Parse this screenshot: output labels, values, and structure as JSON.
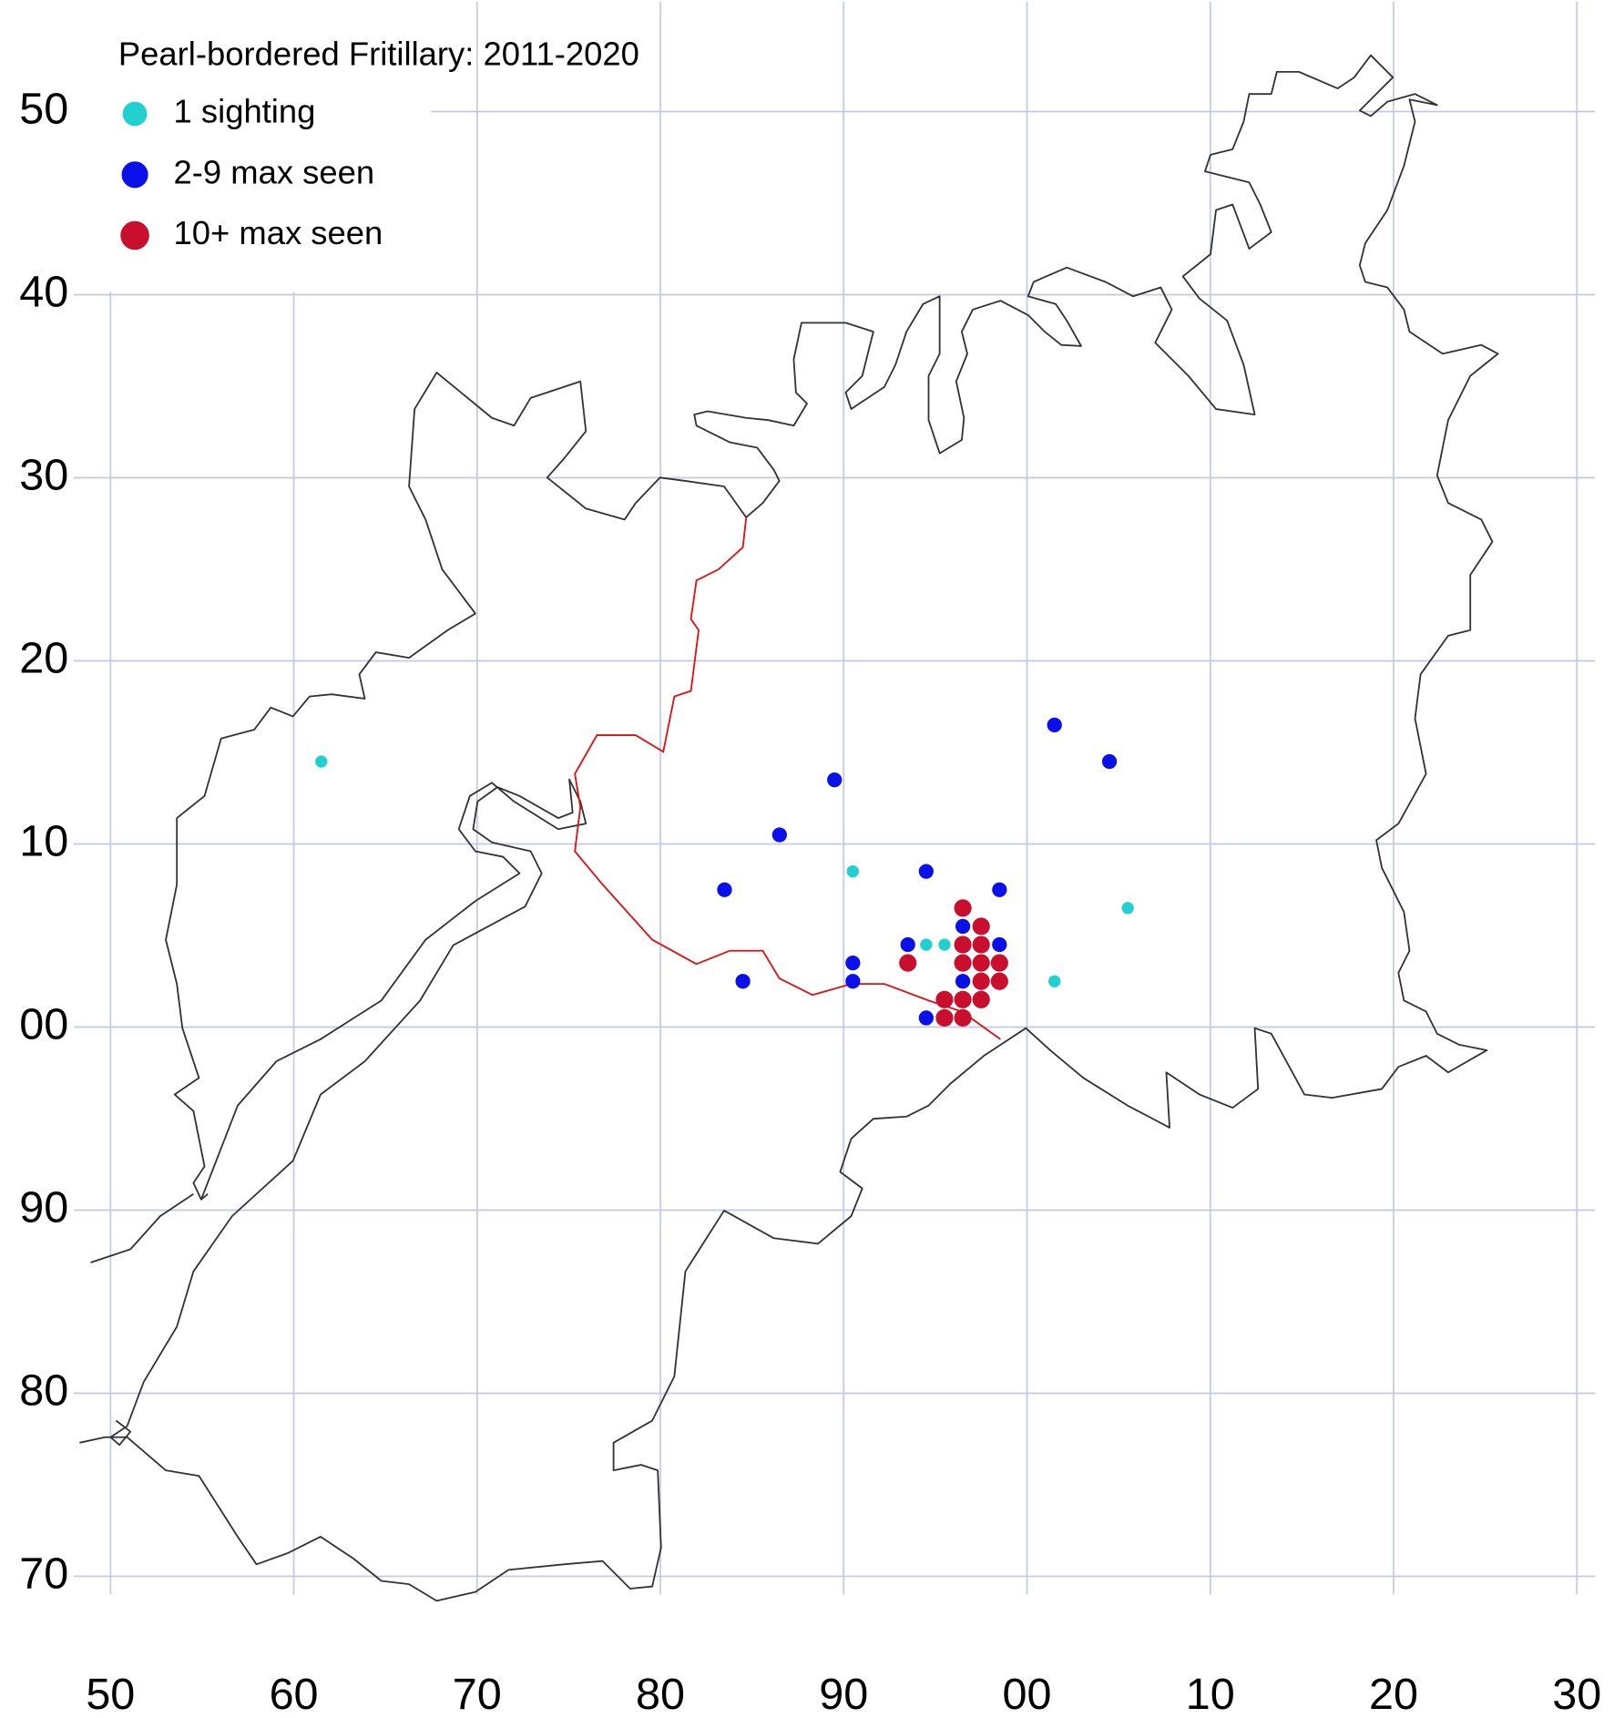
{
  "chart_data": {
    "type": "scatter",
    "title": "Pearl-bordered Fritillary:  2011-2020",
    "xlim": [
      48,
      131
    ],
    "ylim": [
      69,
      156
    ],
    "xticks": [
      50,
      60,
      70,
      80,
      90,
      {
        "value": 100,
        "label": "00"
      },
      {
        "value": 110,
        "label": "10"
      },
      {
        "value": 120,
        "label": "20"
      },
      {
        "value": 130,
        "label": "30"
      }
    ],
    "yticks": [
      70,
      80,
      90,
      {
        "value": 100,
        "label": "00"
      },
      {
        "value": 110,
        "label": "10"
      },
      {
        "value": 120,
        "label": "20"
      },
      {
        "value": 130,
        "label": "30"
      },
      {
        "value": 140,
        "label": "40"
      },
      {
        "value": 150,
        "label": "50"
      }
    ],
    "grid": true,
    "legend": "top-left",
    "series": [
      {
        "name": "1 sighting",
        "color": "#22d0d0",
        "x": [
          61.5,
          90.5,
          94.5,
          95.5,
          105.5,
          101.5
        ],
        "values": [
          114.5,
          108.5,
          104.5,
          104.5,
          106.5,
          102.5
        ]
      },
      {
        "name": "2-9 max seen",
        "color": "#0a10e8",
        "x": [
          101.5,
          104.5,
          89.5,
          86.5,
          83.5,
          94.5,
          98.5,
          96.5,
          93.5,
          98.5,
          90.5,
          90.5,
          84.5,
          96.5,
          94.5
        ],
        "values": [
          116.5,
          114.5,
          113.5,
          110.5,
          107.5,
          108.5,
          107.5,
          105.5,
          104.5,
          104.5,
          103.5,
          102.5,
          102.5,
          102.5,
          100.5
        ]
      },
      {
        "name": "10+ max seen",
        "color": "#c8102e",
        "x": [
          96.5,
          97.5,
          96.5,
          97.5,
          93.5,
          96.5,
          97.5,
          98.5,
          97.5,
          98.5,
          95.5,
          96.5,
          97.5,
          95.5,
          96.5
        ],
        "values": [
          106.5,
          105.5,
          104.5,
          104.5,
          103.5,
          103.5,
          103.5,
          103.5,
          102.5,
          102.5,
          101.5,
          101.5,
          101.5,
          100.5,
          100.5
        ]
      }
    ]
  }
}
